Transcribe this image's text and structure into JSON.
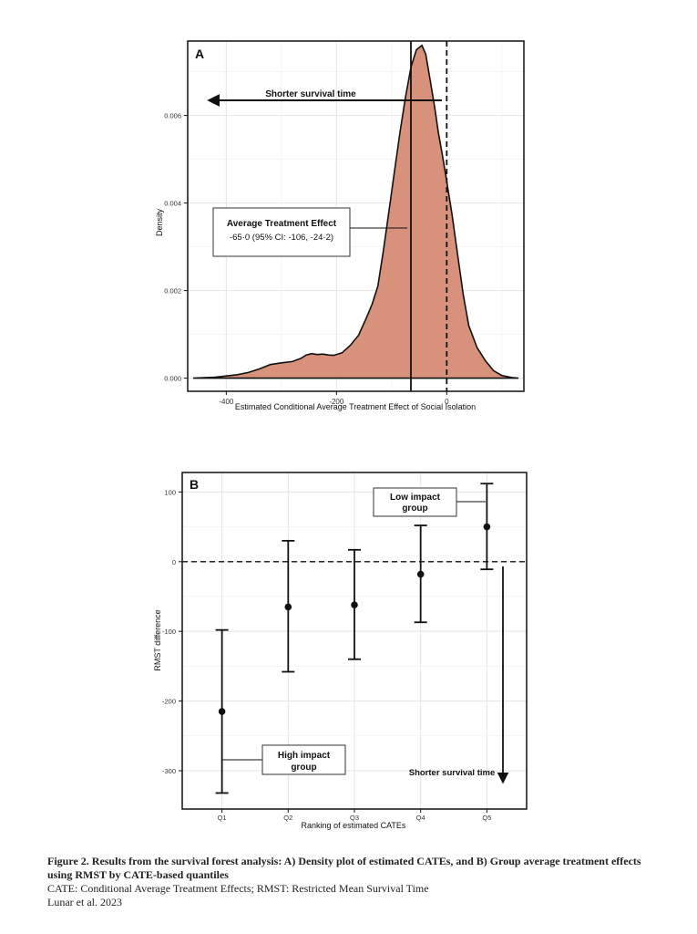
{
  "chart_data": [
    {
      "type": "area",
      "panel_label": "A",
      "xlabel": "Estimated Conditional Average Treatment Effect of Social Isolation",
      "ylabel": "Density",
      "xlim": [
        -470,
        140
      ],
      "ylim": [
        -0.0003,
        0.0077
      ],
      "x_ticks": [
        -400,
        -200,
        0
      ],
      "x_tick_labels": [
        "-400",
        "-200",
        "0"
      ],
      "y_ticks": [
        0,
        0.002,
        0.004,
        0.006
      ],
      "y_tick_labels": [
        "0.000",
        "0.002",
        "0.004",
        "0.006"
      ],
      "fill_color": "#d8917a",
      "grid": true,
      "density": {
        "x": [
          -460,
          -420,
          -380,
          -360,
          -340,
          -320,
          -300,
          -280,
          -265,
          -255,
          -245,
          -235,
          -225,
          -215,
          -205,
          -190,
          -175,
          -160,
          -145,
          -135,
          -125,
          -115,
          -105,
          -95,
          -85,
          -75,
          -65,
          -55,
          -45,
          -38,
          -30,
          -22,
          -15,
          -8,
          0,
          10,
          20,
          30,
          40,
          55,
          70,
          85,
          100,
          120,
          130
        ],
        "y": [
          0,
          2e-05,
          8e-05,
          0.00013,
          0.00021,
          0.00031,
          0.00035,
          0.00038,
          0.00045,
          0.00053,
          0.00056,
          0.00054,
          0.00055,
          0.00053,
          0.00052,
          0.00058,
          0.00075,
          0.00098,
          0.0014,
          0.0017,
          0.0021,
          0.0029,
          0.0038,
          0.0047,
          0.0056,
          0.0064,
          0.0071,
          0.0075,
          0.0076,
          0.0074,
          0.0068,
          0.0062,
          0.0056,
          0.0051,
          0.0045,
          0.0037,
          0.0028,
          0.0019,
          0.0012,
          0.0007,
          0.0004,
          0.00017,
          6e-05,
          1e-05,
          0
        ]
      },
      "ate_line_x": -65,
      "zero_line_x": 0,
      "annotations": {
        "arrow_label": "Shorter survival time",
        "ate_title": "Average Treatment Effect",
        "ate_value": "-65·0 (95% CI: -106, -24·2)"
      }
    },
    {
      "type": "scatter",
      "panel_label": "B",
      "xlabel": "Ranking of estimated CATEs",
      "ylabel": "RMST difference",
      "categories": [
        "Q1",
        "Q2",
        "Q3",
        "Q4",
        "Q5"
      ],
      "values": [
        -215,
        -65,
        -62,
        -18,
        50
      ],
      "ci_low": [
        -332,
        -158,
        -140,
        -87,
        -11
      ],
      "ci_high": [
        -98,
        30,
        17,
        52,
        112
      ],
      "ylim": [
        -355,
        128
      ],
      "y_ticks": [
        -300,
        -200,
        -100,
        0,
        100
      ],
      "y_tick_labels": [
        "-300",
        "-200",
        "-100",
        "0",
        "100"
      ],
      "zero_line": 0,
      "grid": true,
      "annotations": {
        "low_impact": [
          "Low impact",
          "group"
        ],
        "high_impact": [
          "High impact",
          "group"
        ],
        "arrow_label": "Shorter survival time"
      }
    }
  ],
  "caption": {
    "bold_text": "Figure 2. Results from the survival forest analysis: A) Density plot of estimated CATEs, and B) Group average treatment effects using RMST by CATE-based quantiles",
    "line2": "CATE: Conditional Average Treatment Effects; RMST: Restricted Mean Survival Time",
    "line3": "Lunar et al. 2023"
  }
}
